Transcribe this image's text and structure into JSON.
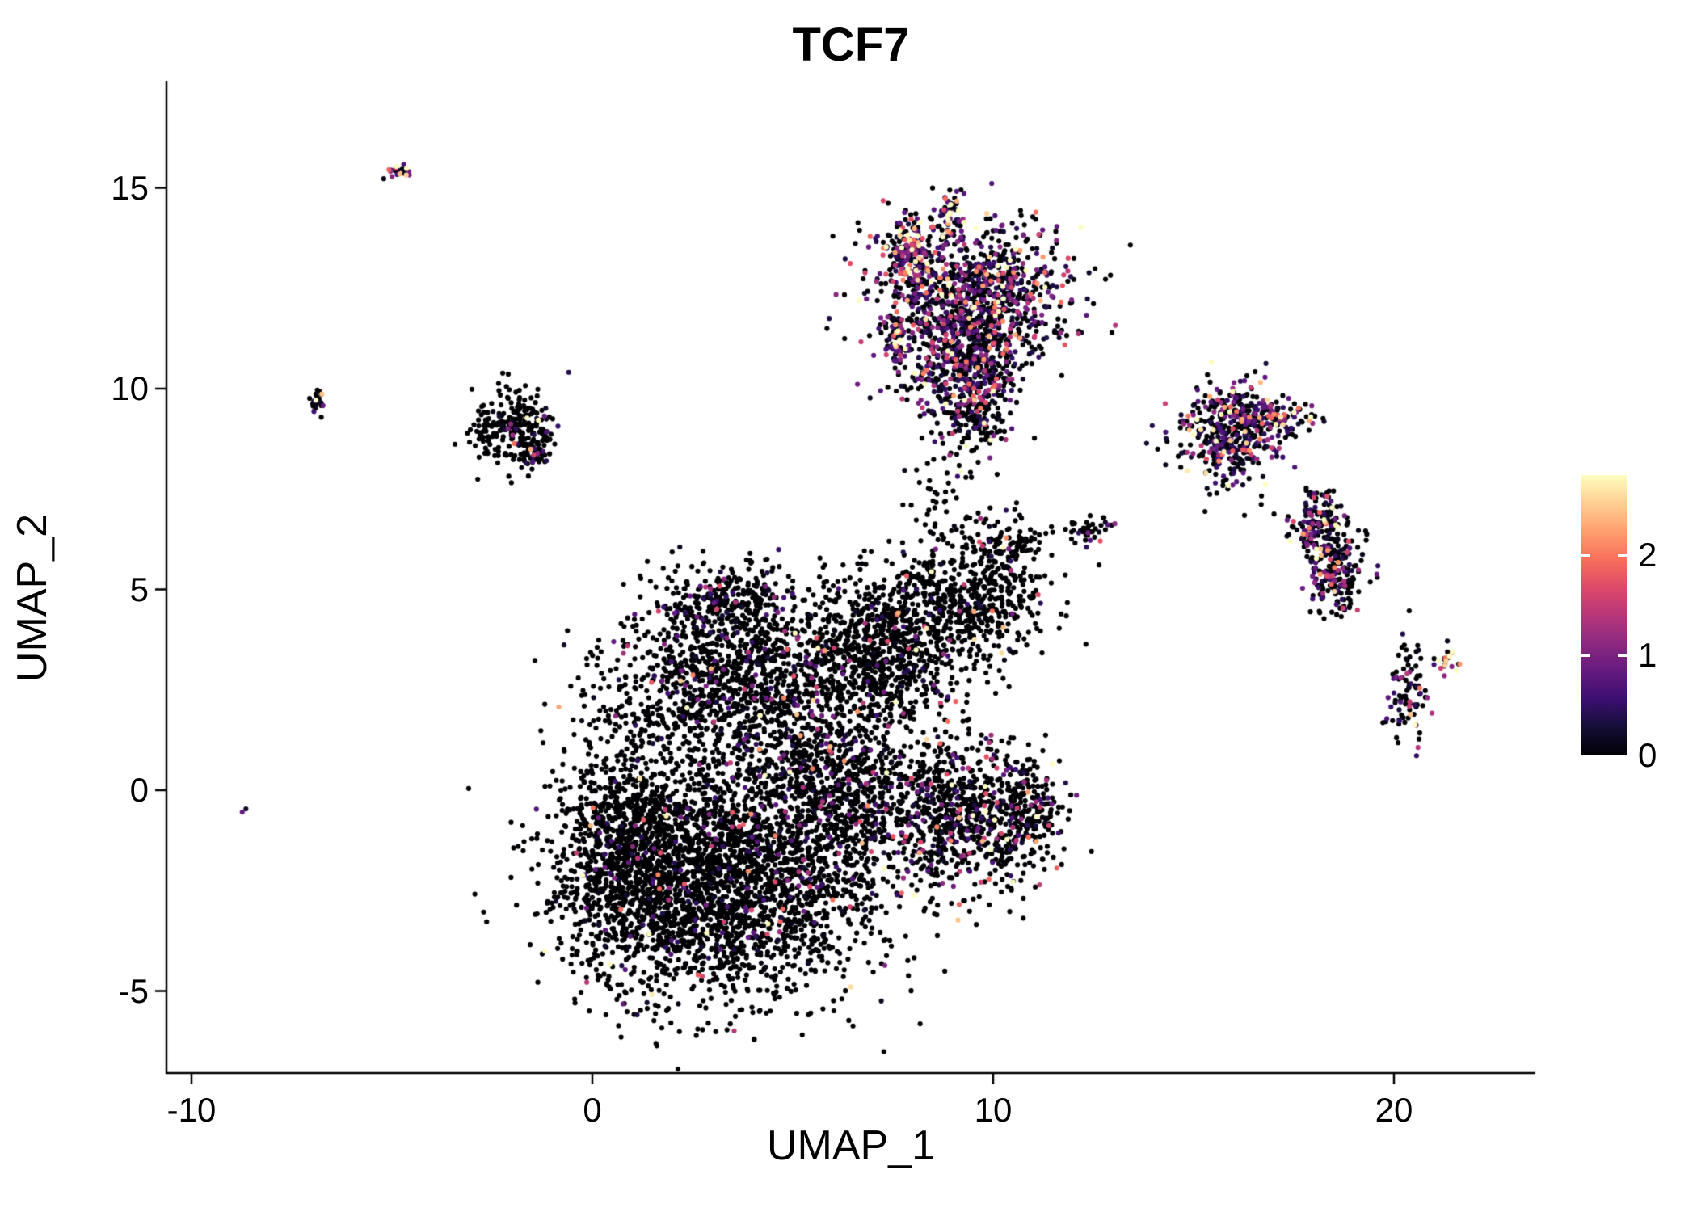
{
  "chart": {
    "title": "TCF7",
    "xlabel": "UMAP_1",
    "ylabel": "UMAP_2"
  },
  "chart_data": {
    "type": "scatter",
    "title": "TCF7",
    "xlabel": "UMAP_1",
    "ylabel": "UMAP_2",
    "xlim": [
      -10.8,
      23.5
    ],
    "ylim": [
      -7.3,
      17.2
    ],
    "x_ticks": [
      -10,
      0,
      10,
      20
    ],
    "y_ticks": [
      -5,
      0,
      5,
      10,
      15
    ],
    "grid": false,
    "point_radius_px": 3.1,
    "legend": {
      "position": "right",
      "ticks": [
        0,
        1,
        2
      ],
      "vmin": 0,
      "vmax": 2.8
    },
    "colormap": {
      "name": "magma",
      "stops": [
        "#000004",
        "#140e36",
        "#3b0f70",
        "#641a80",
        "#8c2981",
        "#b73779",
        "#de4968",
        "#f7705c",
        "#fe9f6d",
        "#fecf92",
        "#fcfdbf"
      ]
    },
    "clusters": [
      {
        "name": "central-main",
        "n": 2600,
        "cx": 3.2,
        "cy": -2.3,
        "sx": 1.9,
        "sy": 1.5,
        "p_expr": 0.08,
        "expr_mean": 0.7
      },
      {
        "name": "central-left",
        "n": 900,
        "cx": 0.9,
        "cy": -1.3,
        "sx": 0.9,
        "sy": 1.4,
        "p_expr": 0.05,
        "expr_mean": 0.7
      },
      {
        "name": "central-upper",
        "n": 1200,
        "cx": 3.6,
        "cy": 2.8,
        "sx": 1.7,
        "sy": 1.0,
        "p_expr": 0.12,
        "expr_mean": 0.8
      },
      {
        "name": "central-right",
        "n": 900,
        "cx": 5.9,
        "cy": 0.2,
        "sx": 1.2,
        "sy": 1.3,
        "p_expr": 0.16,
        "expr_mean": 0.8
      },
      {
        "name": "central-top-bump",
        "n": 280,
        "cx": 3.4,
        "cy": 4.7,
        "sx": 0.9,
        "sy": 0.45,
        "p_expr": 0.15,
        "expr_mean": 0.8
      },
      {
        "name": "arm-upper-right",
        "n": 700,
        "cx": 7.3,
        "cy": 3.6,
        "sx": 1.0,
        "sy": 0.9,
        "p_expr": 0.08,
        "expr_mean": 0.8
      },
      {
        "name": "arm-blob",
        "n": 500,
        "cx": 9.3,
        "cy": 4.7,
        "sx": 1.0,
        "sy": 0.8,
        "p_expr": 0.06,
        "expr_mean": 0.8
      },
      {
        "name": "arm-tip",
        "n": 120,
        "cx": 10.3,
        "cy": 6.0,
        "sx": 0.5,
        "sy": 0.4,
        "p_expr": 0.08,
        "expr_mean": 0.8
      },
      {
        "name": "lower-right-lobe",
        "n": 700,
        "cx": 9.0,
        "cy": -0.6,
        "sx": 1.0,
        "sy": 1.0,
        "p_expr": 0.22,
        "expr_mean": 0.9
      },
      {
        "name": "lower-right-ext",
        "n": 250,
        "cx": 10.8,
        "cy": -0.6,
        "sx": 0.55,
        "sy": 0.8,
        "p_expr": 0.2,
        "expr_mean": 0.9
      },
      {
        "name": "top-main",
        "n": 1100,
        "cx": 9.4,
        "cy": 12.3,
        "sx": 1.2,
        "sy": 0.95,
        "p_expr": 0.55,
        "expr_mean": 0.9
      },
      {
        "name": "top-lower",
        "n": 400,
        "cx": 9.3,
        "cy": 10.4,
        "sx": 0.7,
        "sy": 0.7,
        "p_expr": 0.5,
        "expr_mean": 0.9
      },
      {
        "name": "top-left-streak",
        "n": 150,
        "cx": 7.9,
        "cy": 13.4,
        "sx": 0.3,
        "sy": 0.5,
        "p_expr": 0.75,
        "expr_mean": 1.3
      },
      {
        "name": "top-small-streak",
        "n": 60,
        "cx": 7.6,
        "cy": 11.3,
        "sx": 0.15,
        "sy": 0.35,
        "p_expr": 0.7,
        "expr_mean": 1.3
      },
      {
        "name": "top-nub",
        "n": 50,
        "cx": 8.95,
        "cy": 14.3,
        "sx": 0.15,
        "sy": 0.3,
        "p_expr": 0.6,
        "expr_mean": 1.2
      },
      {
        "name": "top-tail",
        "n": 120,
        "cx": 9.7,
        "cy": 9.4,
        "sx": 0.3,
        "sy": 0.55,
        "p_expr": 0.4,
        "expr_mean": 0.9
      },
      {
        "name": "trail-mid",
        "n": 60,
        "cx": 8.8,
        "cy": 7.3,
        "sx": 0.55,
        "sy": 0.9,
        "p_expr": 0.15,
        "expr_mean": 0.8
      },
      {
        "name": "right-upper",
        "n": 450,
        "cx": 15.9,
        "cy": 8.9,
        "sx": 0.65,
        "sy": 0.6,
        "p_expr": 0.5,
        "expr_mean": 0.9
      },
      {
        "name": "right-upper-streak",
        "n": 90,
        "cx": 17.1,
        "cy": 9.3,
        "sx": 0.4,
        "sy": 0.22,
        "p_expr": 0.6,
        "expr_mean": 1.1
      },
      {
        "name": "right-mid-a",
        "n": 180,
        "cx": 18.1,
        "cy": 6.6,
        "sx": 0.35,
        "sy": 0.45,
        "p_expr": 0.45,
        "expr_mean": 0.9
      },
      {
        "name": "right-mid-b",
        "n": 180,
        "cx": 18.6,
        "cy": 5.3,
        "sx": 0.35,
        "sy": 0.5,
        "p_expr": 0.45,
        "expr_mean": 0.9
      },
      {
        "name": "right-lower",
        "n": 90,
        "cx": 20.4,
        "cy": 2.5,
        "sx": 0.28,
        "sy": 0.55,
        "p_expr": 0.4,
        "expr_mean": 0.9
      },
      {
        "name": "right-lower-streak",
        "n": 25,
        "cx": 21.3,
        "cy": 3.3,
        "sx": 0.15,
        "sy": 0.18,
        "p_expr": 0.7,
        "expr_mean": 1.5
      },
      {
        "name": "left-small",
        "n": 260,
        "cx": -2.0,
        "cy": 9.0,
        "sx": 0.5,
        "sy": 0.45,
        "p_expr": 0.08,
        "expr_mean": 0.8
      },
      {
        "name": "left-small-edge",
        "n": 30,
        "cx": -1.55,
        "cy": 8.35,
        "sx": 0.2,
        "sy": 0.15,
        "p_expr": 0.5,
        "expr_mean": 1.1
      },
      {
        "name": "far-left-dot",
        "n": 25,
        "cx": -6.9,
        "cy": 9.65,
        "sx": 0.1,
        "sy": 0.16,
        "p_expr": 0.4,
        "expr_mean": 1.0
      },
      {
        "name": "top-left-tiny",
        "n": 20,
        "cx": -4.8,
        "cy": 15.4,
        "sx": 0.16,
        "sy": 0.1,
        "p_expr": 0.8,
        "expr_mean": 1.1
      },
      {
        "name": "far-left-single",
        "n": 2,
        "cx": -8.7,
        "cy": -0.45,
        "sx": 0.05,
        "sy": 0.05,
        "p_expr": 1.0,
        "expr_mean": 0.9
      },
      {
        "name": "mid-right-dots",
        "n": 40,
        "cx": 12.3,
        "cy": 6.5,
        "sx": 0.35,
        "sy": 0.18,
        "p_expr": 0.15,
        "expr_mean": 0.8
      }
    ]
  }
}
